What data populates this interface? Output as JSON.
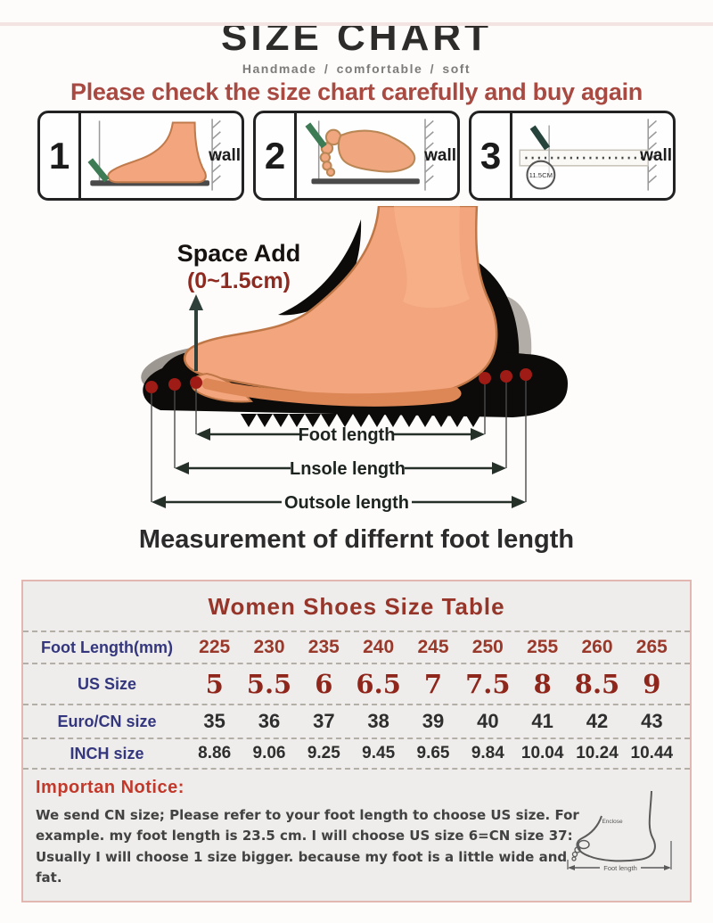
{
  "page": {
    "title": "SIZE CHART",
    "subtitle": "Handmade / comfortable / soft",
    "warning": "Please check the size chart carefully and buy again"
  },
  "steps": {
    "items": [
      {
        "number": "1",
        "wall": "wall"
      },
      {
        "number": "2",
        "wall": "wall"
      },
      {
        "number": "3",
        "wall": "wall",
        "measure": "11.5CM"
      }
    ]
  },
  "diagram": {
    "space_add": "Space Add",
    "space_range": "(0~1.5cm)",
    "foot_length": "Foot length",
    "insole_length": "Lnsole length",
    "outsole_length": "Outsole length",
    "caption": "Measurement of differnt foot length"
  },
  "size_table": {
    "title": "Women Shoes Size Table",
    "rows": [
      {
        "label": "Foot Length(mm)",
        "values": [
          "225",
          "230",
          "235",
          "240",
          "245",
          "250",
          "255",
          "260",
          "265"
        ]
      },
      {
        "label": "US Size",
        "values": [
          "5",
          "5.5",
          "6",
          "6.5",
          "7",
          "7.5",
          "8",
          "8.5",
          "9"
        ]
      },
      {
        "label": "Euro/CN size",
        "values": [
          "35",
          "36",
          "37",
          "38",
          "39",
          "40",
          "41",
          "42",
          "43"
        ]
      },
      {
        "label": "INCH size",
        "values": [
          "8.86",
          "9.06",
          "9.25",
          "9.45",
          "9.65",
          "9.84",
          "10.04",
          "10.24",
          "10.44"
        ]
      }
    ]
  },
  "notice": {
    "title": "Importan Notice:",
    "body": "We send CN size; Please refer to your foot length to choose US size. For example. my foot length is 23.5 cm.  I will choose US size 6=CN size 37: Usually I will choose 1 size bigger.  because my foot is a little wide and fat.",
    "sketch": {
      "ankle_label": "Enclose",
      "length_label": "Foot length"
    }
  },
  "colors": {
    "warning_red": "#a84a42",
    "table_title_red": "#96352a",
    "label_blue": "#34377e",
    "value_red": "#99392b",
    "us_size_red": "#8e261b",
    "notice_red": "#c2392b",
    "foot_orange": "#f3a57d",
    "insole_gray": "#9d9792",
    "outsole_black": "#0c0b09",
    "dot_red": "#9e1c15",
    "pencil_green": "#3c7b54"
  },
  "chart_data": {
    "type": "table",
    "title": "Women Shoes Size Table",
    "row_labels": [
      "Foot Length(mm)",
      "US Size",
      "Euro/CN size",
      "INCH size"
    ],
    "rows": [
      [
        225,
        230,
        235,
        240,
        245,
        250,
        255,
        260,
        265
      ],
      [
        5,
        5.5,
        6,
        6.5,
        7,
        7.5,
        8,
        8.5,
        9
      ],
      [
        35,
        36,
        37,
        38,
        39,
        40,
        41,
        42,
        43
      ],
      [
        8.86,
        9.06,
        9.25,
        9.45,
        9.65,
        9.84,
        10.04,
        10.24,
        10.44
      ]
    ]
  }
}
